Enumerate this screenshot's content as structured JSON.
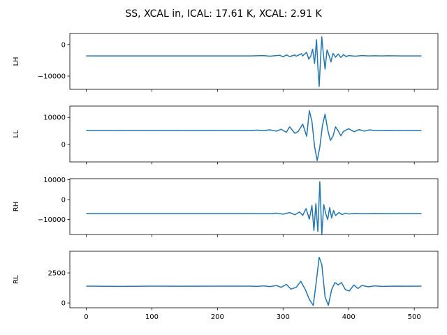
{
  "figure": {
    "title": "SS, XCAL in, ICAL: 17.61 K, XCAL: 2.91 K"
  },
  "colors": {
    "line": "#1f77b4",
    "axes": "#000000",
    "background": "#ffffff"
  },
  "chart_data": [
    {
      "type": "line",
      "ylabel": "LH",
      "xlim": [
        -25,
        536
      ],
      "ylim": [
        -14200,
        3500
      ],
      "yticks": [
        -10000,
        0
      ],
      "ytick_labels": [
        "−10000",
        "0"
      ],
      "xticks": [
        0,
        100,
        200,
        300,
        400,
        500
      ],
      "show_xtick_labels": false,
      "grid": false,
      "series": [
        {
          "x": [
            0,
            250,
            270,
            280,
            290,
            295,
            300,
            305,
            310,
            315,
            318,
            320,
            325,
            328,
            330,
            333,
            336,
            339,
            342,
            345,
            348,
            351,
            353,
            355,
            357,
            359,
            361,
            364,
            367,
            370,
            373,
            376,
            380,
            384,
            388,
            392,
            396,
            400,
            410,
            420,
            430,
            440,
            450,
            460,
            480,
            500,
            511
          ],
          "values": [
            -3600,
            -3600,
            -3500,
            -3700,
            -3500,
            -3400,
            -3900,
            -3300,
            -3800,
            -3500,
            -3300,
            -3700,
            -3200,
            -2900,
            -3600,
            -3000,
            -2500,
            -4600,
            -3800,
            -1500,
            -6000,
            1500,
            -7000,
            -13300,
            -5000,
            2400,
            -2200,
            -7800,
            -1700,
            -3400,
            -5500,
            -2800,
            -4000,
            -3000,
            -4100,
            -3200,
            -3800,
            -3500,
            -3700,
            -3500,
            -3600,
            -3550,
            -3600,
            -3550,
            -3600,
            -3600,
            -3600
          ]
        }
      ]
    },
    {
      "type": "line",
      "ylabel": "LL",
      "xlim": [
        -25,
        536
      ],
      "ylim": [
        -6500,
        14200
      ],
      "yticks": [
        0,
        10000
      ],
      "ytick_labels": [
        "0",
        "10000"
      ],
      "xticks": [
        0,
        100,
        200,
        300,
        400,
        500
      ],
      "show_xtick_labels": false,
      "grid": false,
      "series": [
        {
          "x": [
            0,
            50,
            100,
            150,
            200,
            240,
            250,
            260,
            270,
            280,
            290,
            297,
            305,
            310,
            318,
            323,
            330,
            336,
            340,
            344,
            348,
            352,
            356,
            360,
            364,
            368,
            372,
            376,
            380,
            384,
            388,
            392,
            400,
            408,
            416,
            424,
            432,
            440,
            460,
            480,
            500,
            511
          ],
          "values": [
            5200,
            5100,
            5200,
            5100,
            5200,
            5200,
            5100,
            5300,
            5100,
            5400,
            4900,
            5600,
            4500,
            6500,
            4100,
            4800,
            7500,
            3000,
            12500,
            8500,
            -800,
            -6000,
            -1000,
            7000,
            11200,
            5500,
            1500,
            3000,
            6500,
            5000,
            3200,
            4800,
            5800,
            4700,
            5500,
            4900,
            5400,
            5100,
            5200,
            5100,
            5200,
            5200
          ]
        }
      ]
    },
    {
      "type": "line",
      "ylabel": "RH",
      "xlim": [
        -25,
        536
      ],
      "ylim": [
        -17500,
        10500
      ],
      "yticks": [
        -10000,
        0,
        10000
      ],
      "ytick_labels": [
        "−10000",
        "0",
        "10000"
      ],
      "xticks": [
        0,
        100,
        200,
        300,
        400,
        500
      ],
      "show_xtick_labels": false,
      "grid": false,
      "series": [
        {
          "x": [
            0,
            250,
            280,
            290,
            300,
            310,
            318,
            325,
            330,
            335,
            340,
            344,
            347,
            350,
            353,
            356,
            359,
            362,
            365,
            368,
            371,
            374,
            377,
            380,
            385,
            390,
            395,
            400,
            410,
            420,
            440,
            460,
            480,
            500,
            511
          ],
          "values": [
            -7000,
            -7000,
            -7100,
            -6800,
            -7300,
            -6500,
            -7600,
            -6200,
            -7900,
            -4500,
            -9800,
            -3000,
            -15500,
            -2000,
            -16000,
            9000,
            -17500,
            -2500,
            -7000,
            -10000,
            -4000,
            -9200,
            -5500,
            -8000,
            -6500,
            -7500,
            -6800,
            -7200,
            -6900,
            -7100,
            -7000,
            -7050,
            -7000,
            -7000,
            -7000
          ]
        }
      ]
    },
    {
      "type": "line",
      "ylabel": "RL",
      "xlim": [
        -25,
        536
      ],
      "ylim": [
        -400,
        4300
      ],
      "yticks": [
        0,
        2500
      ],
      "ytick_labels": [
        "0",
        "2500"
      ],
      "xticks": [
        0,
        100,
        200,
        300,
        400,
        500
      ],
      "xtick_labels": [
        "0",
        "100",
        "200",
        "300",
        "400",
        "500"
      ],
      "show_xtick_labels": true,
      "grid": false,
      "series": [
        {
          "x": [
            0,
            50,
            100,
            150,
            200,
            250,
            260,
            270,
            280,
            290,
            297,
            305,
            312,
            320,
            327,
            334,
            340,
            346,
            350,
            355,
            359,
            364,
            369,
            374,
            379,
            384,
            389,
            395,
            401,
            408,
            414,
            420,
            430,
            440,
            450,
            470,
            490,
            511
          ],
          "values": [
            1400,
            1380,
            1400,
            1390,
            1400,
            1400,
            1380,
            1420,
            1360,
            1450,
            1300,
            1550,
            1150,
            1300,
            1800,
            1100,
            300,
            -200,
            1500,
            3800,
            3200,
            500,
            -200,
            1100,
            1700,
            1500,
            1700,
            1100,
            1000,
            1500,
            1200,
            1450,
            1350,
            1420,
            1380,
            1400,
            1390,
            1400
          ]
        }
      ]
    }
  ]
}
